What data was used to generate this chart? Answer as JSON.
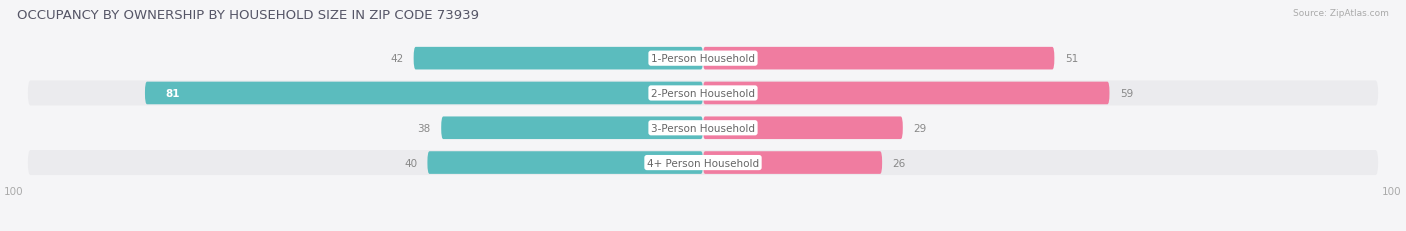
{
  "title": "OCCUPANCY BY OWNERSHIP BY HOUSEHOLD SIZE IN ZIP CODE 73939",
  "source": "Source: ZipAtlas.com",
  "categories": [
    "1-Person Household",
    "2-Person Household",
    "3-Person Household",
    "4+ Person Household"
  ],
  "owner_values": [
    42,
    81,
    38,
    40
  ],
  "renter_values": [
    51,
    59,
    29,
    26
  ],
  "owner_color": "#5bbcbe",
  "renter_color": "#f07ca0",
  "axis_max": 100,
  "title_fontsize": 9.5,
  "label_fontsize": 7.5,
  "value_fontsize": 7.5,
  "axis_label_fontsize": 7.5,
  "row_colors": [
    "#f5f5f7",
    "#ebebee",
    "#f5f5f7",
    "#ebebee"
  ],
  "bg_color": "#f5f5f7"
}
